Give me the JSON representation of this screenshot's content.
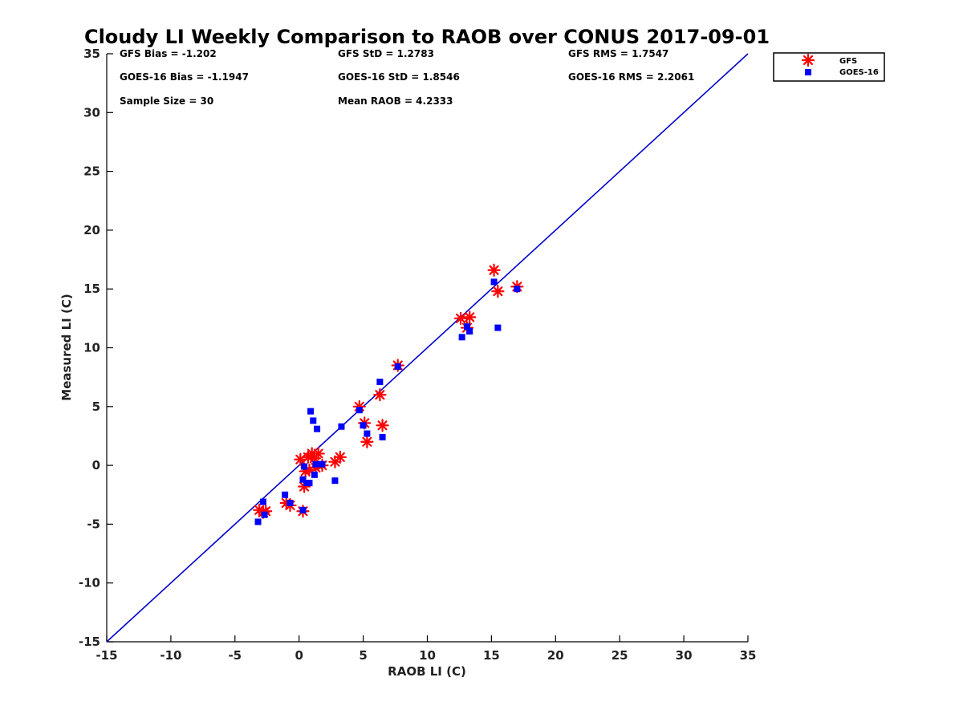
{
  "chart_data": {
    "type": "scatter",
    "title": "Cloudy LI Weekly Comparison to RAOB over CONUS 2017-09-01",
    "xlabel": "RAOB LI (C)",
    "ylabel": "Measured LI (C)",
    "xlim": [
      -15,
      35
    ],
    "ylim": [
      -15,
      35
    ],
    "xticks": [
      "-15",
      "-10",
      "-5",
      "0",
      "5",
      "10",
      "15",
      "20",
      "25",
      "30",
      "35"
    ],
    "yticks": [
      "-15",
      "-10",
      "-5",
      "0",
      "5",
      "10",
      "15",
      "20",
      "25",
      "30",
      "35"
    ],
    "grid": false,
    "legend_position": "outside top-right",
    "reference_line": {
      "x": [
        -15,
        35
      ],
      "y": [
        -15,
        35
      ],
      "color": "#0000cc"
    },
    "stats": {
      "row1": [
        "GFS Bias = -1.202",
        "GFS StD = 1.2783",
        "GFS RMS = 1.7547"
      ],
      "row2": [
        "GOES-16 Bias = -1.1947",
        "GOES-16 StD = 1.8546",
        "GOES-16 RMS = 2.2061"
      ],
      "row3": [
        "Sample Size = 30",
        "Mean RAOB = 4.2333"
      ]
    },
    "series": [
      {
        "name": "GFS",
        "marker": "asterisk",
        "color": "#ff0000",
        "x": [
          -3.1,
          -2.8,
          -2.6,
          -1.0,
          -0.7,
          0.3,
          0.4,
          0.5,
          0.7,
          0.8,
          1.0,
          1.2,
          1.3,
          1.5,
          1.8,
          2.8,
          3.2,
          4.7,
          5.1,
          5.3,
          6.3,
          6.5,
          7.7,
          12.6,
          13.1,
          13.3,
          15.2,
          15.5,
          17.0,
          0.1
        ],
        "y": [
          -3.8,
          -4.0,
          -3.9,
          -3.2,
          -3.4,
          -3.9,
          -1.8,
          -0.5,
          0.7,
          -0.4,
          1.0,
          0.6,
          -0.2,
          1.0,
          0.0,
          0.3,
          0.7,
          5.0,
          3.6,
          2.0,
          6.0,
          3.4,
          8.5,
          12.5,
          11.7,
          12.6,
          16.6,
          14.8,
          15.2,
          0.5
        ]
      },
      {
        "name": "GOES-16",
        "marker": "square",
        "color": "#0000ff",
        "x": [
          -3.2,
          -2.8,
          -2.7,
          -1.1,
          -0.7,
          0.3,
          0.3,
          0.4,
          0.6,
          0.8,
          0.9,
          1.1,
          1.2,
          1.3,
          1.4,
          1.8,
          2.8,
          3.3,
          4.7,
          5.0,
          5.3,
          6.3,
          6.5,
          7.7,
          12.7,
          13.1,
          13.3,
          15.2,
          15.5,
          17.0
        ],
        "y": [
          -4.8,
          -3.1,
          -4.2,
          -2.5,
          -3.2,
          -3.8,
          -1.2,
          -0.1,
          -1.5,
          -1.5,
          4.6,
          3.8,
          -0.8,
          0.1,
          3.1,
          0.1,
          -1.3,
          3.3,
          4.7,
          3.4,
          2.7,
          7.1,
          2.4,
          8.4,
          10.9,
          11.8,
          11.4,
          15.6,
          11.7,
          15.0
        ]
      }
    ]
  }
}
